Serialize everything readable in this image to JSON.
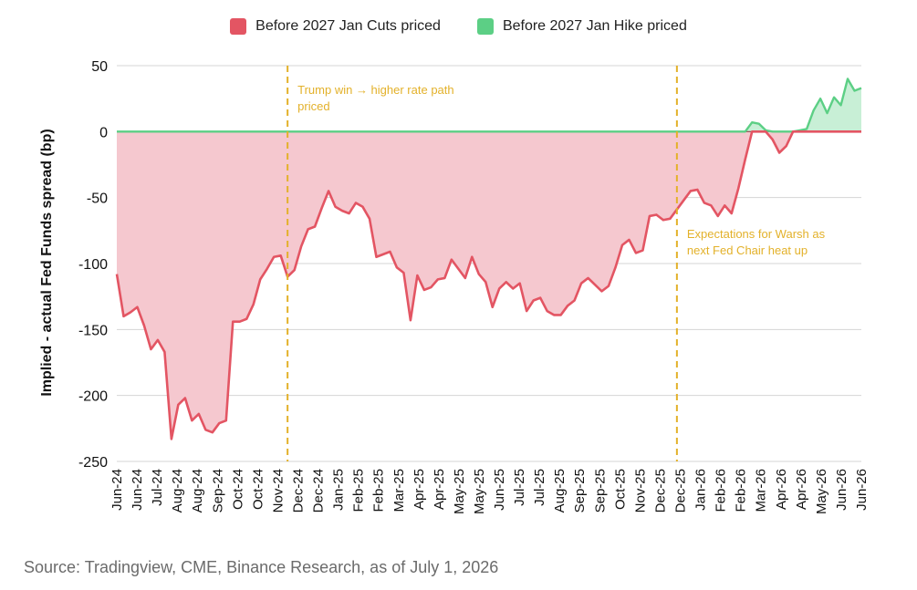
{
  "chart_data": {
    "type": "area",
    "title": "",
    "ylabel": "Implied - actual Fed Funds spread (bp)",
    "xlabel": "",
    "ylim": [
      -250,
      50
    ],
    "yticks": [
      50,
      0,
      -50,
      -100,
      -150,
      -200,
      -250
    ],
    "grid": true,
    "legend_position": "top-center",
    "x_tick_labels": [
      "Jun-24",
      "Jun-24",
      "Jul-24",
      "Aug-24",
      "Aug-24",
      "Sep-24",
      "Oct-24",
      "Oct-24",
      "Nov-24",
      "Dec-24",
      "Dec-24",
      "Jan-25",
      "Feb-25",
      "Feb-25",
      "Mar-25",
      "Apr-25",
      "Apr-25",
      "May-25",
      "May-25",
      "Jun-25",
      "Jul-25",
      "Jul-25",
      "Aug-25",
      "Sep-25",
      "Sep-25",
      "Oct-25",
      "Nov-25",
      "Dec-25",
      "Dec-25",
      "Jan-26",
      "Feb-26",
      "Feb-26",
      "Mar-26",
      "Apr-26",
      "Apr-26",
      "May-26",
      "Jun-26",
      "Jun-26"
    ],
    "series": [
      {
        "name": "Before 2027 Jan Cuts priced",
        "color": "#e35563",
        "fill": "#f5c8cf"
      },
      {
        "name": "Before 2027 Jan Hike priced",
        "color": "#5ccf85",
        "fill": "#c8efd6"
      }
    ],
    "values": [
      -108,
      -140,
      -137,
      -133,
      -147,
      -165,
      -158,
      -167,
      -233,
      -207,
      -202,
      -219,
      -214,
      -226,
      -228,
      -221,
      -219,
      -144,
      -144,
      -142,
      -131,
      -112,
      -104,
      -95,
      -94,
      -110,
      -105,
      -87,
      -74,
      -72,
      -58,
      -45,
      -57,
      -60,
      -62,
      -54,
      -57,
      -66,
      -95,
      -93,
      -91,
      -103,
      -107,
      -143,
      -109,
      -120,
      -118,
      -112,
      -111,
      -97,
      -104,
      -111,
      -95,
      -108,
      -114,
      -133,
      -119,
      -114,
      -119,
      -115,
      -136,
      -128,
      -126,
      -136,
      -139,
      -139,
      -132,
      -128,
      -115,
      -111,
      -116,
      -121,
      -117,
      -103,
      -86,
      -82,
      -92,
      -90,
      -64,
      -63,
      -67,
      -66,
      -59,
      -52,
      -45,
      -44,
      -54,
      -56,
      -64,
      -56,
      -62,
      -43,
      -21,
      7,
      6,
      1,
      -6,
      -16,
      -11,
      0,
      1,
      2,
      16,
      25,
      14,
      26,
      20,
      40,
      31,
      33
    ],
    "annotations": [
      {
        "text_lines": [
          "Trump win → higher rate path",
          "priced"
        ],
        "x_index": 25
      },
      {
        "text_lines": [
          "Expectations for Warsh as",
          "next Fed Chair heat up"
        ],
        "x_index": 82
      }
    ]
  },
  "source": "Source: Tradingview, CME, Binance Research, as of July 1, 2026"
}
